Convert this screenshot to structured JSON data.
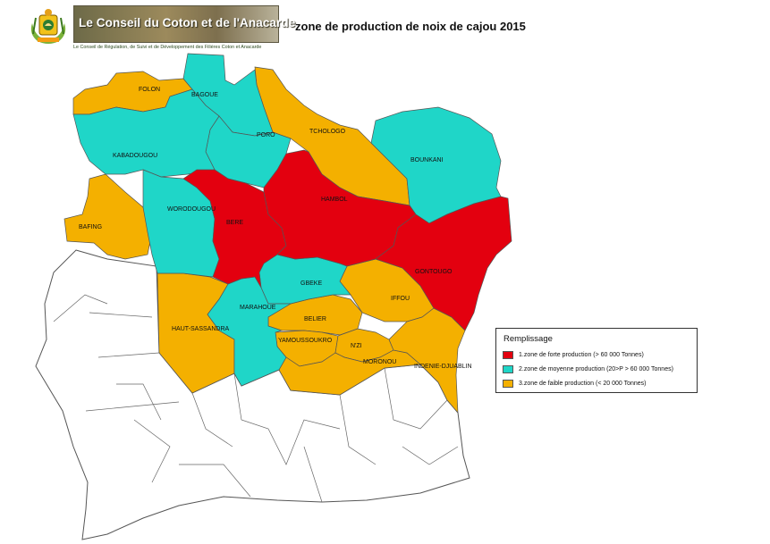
{
  "header": {
    "banner_title": "Le Conseil du Coton et de l'Anacarde",
    "banner_subtitle": "Le Conseil de Régulation, de Suivi et de Développement des Filières Coton et Anacarde",
    "map_title": "zone de production de noix de cajou 2015",
    "emblem_icon": "coat-of-arms-icon"
  },
  "colors": {
    "zone_forte": "#e3000f",
    "zone_moyenne": "#1fd6c8",
    "zone_faible": "#f4b000",
    "non_productive": "#ffffff",
    "borders": "#555555"
  },
  "regions": [
    {
      "name": "FOLON",
      "zone": "faible"
    },
    {
      "name": "BAGOUE",
      "zone": "moyenne"
    },
    {
      "name": "PORO",
      "zone": "moyenne"
    },
    {
      "name": "TCHOLOGO",
      "zone": "faible"
    },
    {
      "name": "BOUNKANI",
      "zone": "moyenne"
    },
    {
      "name": "KABADOUGOU",
      "zone": "moyenne"
    },
    {
      "name": "HAMBOL",
      "zone": "forte"
    },
    {
      "name": "WORODOUGOU",
      "zone": "moyenne"
    },
    {
      "name": "BERE",
      "zone": "forte"
    },
    {
      "name": "BAFING",
      "zone": "faible"
    },
    {
      "name": "GONTOUGO",
      "zone": "forte"
    },
    {
      "name": "GBEKE",
      "zone": "moyenne"
    },
    {
      "name": "IFFOU",
      "zone": "faible"
    },
    {
      "name": "MARAHOUE",
      "zone": "moyenne"
    },
    {
      "name": "BELIER",
      "zone": "faible"
    },
    {
      "name": "HAUT-SASSANDRA",
      "zone": "faible"
    },
    {
      "name": "YAMOUSSOUKRO",
      "zone": "faible"
    },
    {
      "name": "N'ZI",
      "zone": "faible"
    },
    {
      "name": "MORONOU",
      "zone": "faible"
    },
    {
      "name": "INDENIE-DJUABLIN",
      "zone": "faible"
    }
  ],
  "legend": {
    "title": "Remplissage",
    "items": [
      {
        "label": "1.zone de forte production (> 60 000 Tonnes)",
        "color": "#e3000f"
      },
      {
        "label": "2.zone de moyenne production (20>P > 60 000 Tonnes)",
        "color": "#1fd6c8"
      },
      {
        "label": "3.zone de faible production (< 20 000 Tonnes)",
        "color": "#f4b000"
      }
    ]
  }
}
